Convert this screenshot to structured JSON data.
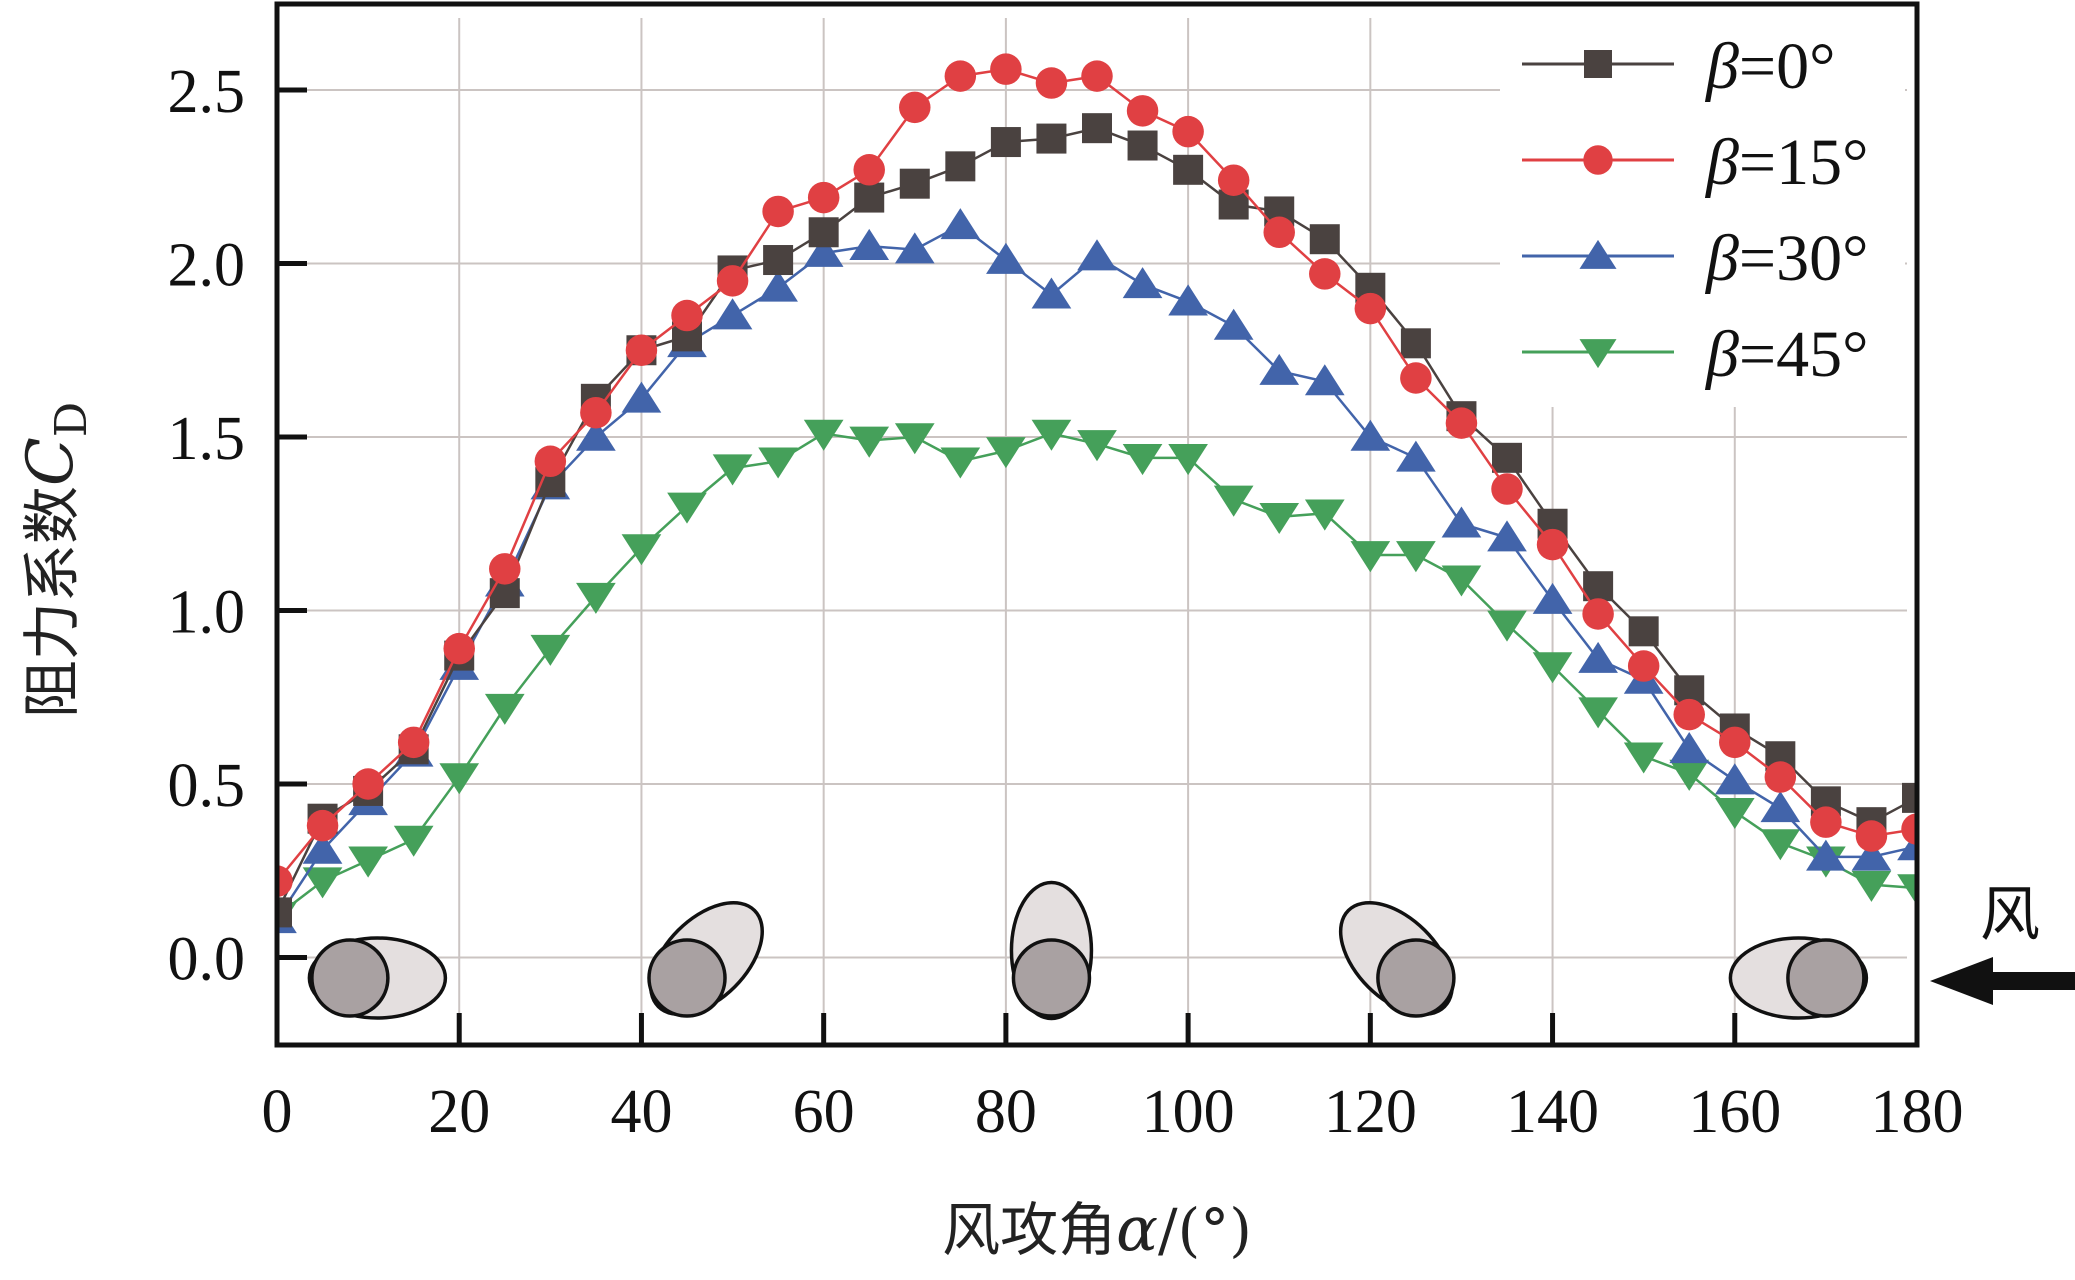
{
  "chart_data": {
    "type": "line",
    "title": "",
    "xlabel": "风攻角α/(°)",
    "xlabel_parts": {
      "text": "风攻角",
      "symbol": "α",
      "unit": "/(°)"
    },
    "ylabel": "阻力系数C_D",
    "ylabel_parts": {
      "text": "阻力系数",
      "symbol": "C",
      "subscript": "D"
    },
    "xlim": [
      0,
      180
    ],
    "ylim": [
      -0.25,
      2.75
    ],
    "xticks": [
      0,
      20,
      40,
      60,
      80,
      100,
      120,
      140,
      160,
      180
    ],
    "xtick_labels": [
      "0",
      "20",
      "40",
      "60",
      "80",
      "100",
      "120",
      "140",
      "160",
      "180"
    ],
    "yticks": [
      0.0,
      0.5,
      1.0,
      1.5,
      2.0,
      2.5
    ],
    "ytick_labels": [
      "0.0",
      "0.5",
      "1.0",
      "1.5",
      "2.0",
      "2.5"
    ],
    "grid": true,
    "legend_position": "top-right",
    "wind_label": "风",
    "wind_direction": "right-to-left",
    "x": [
      0,
      5,
      10,
      15,
      20,
      25,
      30,
      35,
      40,
      45,
      50,
      55,
      60,
      65,
      70,
      75,
      80,
      85,
      90,
      95,
      100,
      105,
      110,
      115,
      120,
      125,
      130,
      135,
      140,
      145,
      150,
      155,
      160,
      165,
      170,
      175,
      180
    ],
    "series": [
      {
        "name": "β=0°",
        "symbol": "β",
        "value_label": "=0°",
        "marker": "square",
        "color": "#4a4240",
        "values": [
          0.13,
          0.4,
          0.48,
          0.6,
          0.87,
          1.05,
          1.37,
          1.61,
          1.75,
          1.79,
          1.98,
          2.01,
          2.09,
          2.19,
          2.23,
          2.28,
          2.35,
          2.36,
          2.39,
          2.34,
          2.27,
          2.17,
          2.15,
          2.07,
          1.93,
          1.77,
          1.56,
          1.44,
          1.25,
          1.07,
          0.94,
          0.77,
          0.66,
          0.58,
          0.45,
          0.39,
          0.46
        ]
      },
      {
        "name": "β=15°",
        "symbol": "β",
        "value_label": "=15°",
        "marker": "circle",
        "color": "#e04043",
        "values": [
          0.22,
          0.38,
          0.5,
          0.62,
          0.89,
          1.12,
          1.43,
          1.57,
          1.75,
          1.85,
          1.95,
          2.15,
          2.19,
          2.27,
          2.45,
          2.54,
          2.56,
          2.52,
          2.54,
          2.44,
          2.38,
          2.24,
          2.09,
          1.97,
          1.87,
          1.67,
          1.54,
          1.35,
          1.19,
          0.99,
          0.84,
          0.7,
          0.62,
          0.52,
          0.39,
          0.35,
          0.37
        ]
      },
      {
        "name": "β=30°",
        "symbol": "β",
        "value_label": "=30°",
        "marker": "triangle-up",
        "color": "#4264aa",
        "values": [
          0.11,
          0.31,
          0.45,
          0.59,
          0.84,
          1.08,
          1.36,
          1.5,
          1.61,
          1.77,
          1.85,
          1.93,
          2.03,
          2.05,
          2.04,
          2.11,
          2.01,
          1.91,
          2.02,
          1.94,
          1.89,
          1.82,
          1.69,
          1.66,
          1.5,
          1.44,
          1.25,
          1.21,
          1.03,
          0.86,
          0.8,
          0.6,
          0.51,
          0.43,
          0.29,
          0.29,
          0.32
        ]
      },
      {
        "name": "β=45°",
        "symbol": "β",
        "value_label": "=45°",
        "marker": "triangle-down",
        "color": "#45a05a",
        "values": [
          0.12,
          0.22,
          0.28,
          0.34,
          0.52,
          0.72,
          0.89,
          1.04,
          1.18,
          1.3,
          1.41,
          1.43,
          1.51,
          1.49,
          1.5,
          1.43,
          1.46,
          1.51,
          1.48,
          1.44,
          1.44,
          1.32,
          1.27,
          1.28,
          1.16,
          1.16,
          1.09,
          0.96,
          0.84,
          0.71,
          0.58,
          0.53,
          0.42,
          0.33,
          0.28,
          0.21,
          0.2
        ]
      }
    ],
    "cross_section_icons": [
      {
        "alpha": 8,
        "orientation_deg": 0
      },
      {
        "alpha": 45,
        "orientation_deg": 45
      },
      {
        "alpha": 85,
        "orientation_deg": 90
      },
      {
        "alpha": 125,
        "orientation_deg": 135
      },
      {
        "alpha": 170,
        "orientation_deg": 180
      }
    ]
  }
}
